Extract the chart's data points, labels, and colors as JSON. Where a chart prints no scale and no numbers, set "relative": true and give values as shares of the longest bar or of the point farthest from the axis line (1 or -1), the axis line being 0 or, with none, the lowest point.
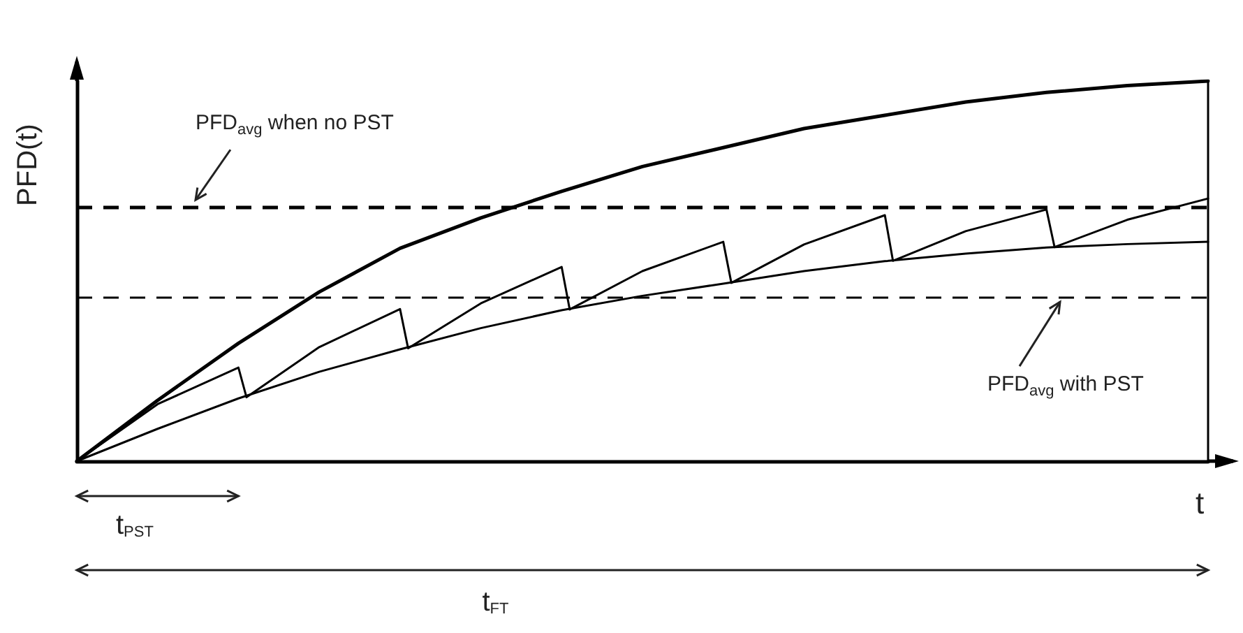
{
  "chart_data": {
    "type": "line",
    "xlabel": "t",
    "ylabel": "PFD(t)",
    "relative": true,
    "tick_labels": false,
    "marker": "none",
    "line_style": "solid",
    "categories": [
      null,
      null,
      null,
      null,
      null,
      null,
      null,
      null,
      null,
      null,
      null,
      null,
      null,
      null,
      null,
      null,
      null,
      null,
      null,
      null,
      null,
      null,
      null,
      null,
      null,
      null,
      null,
      null,
      null,
      null,
      null,
      null,
      null,
      null,
      null,
      null,
      null,
      null,
      null,
      null,
      null,
      null,
      null,
      null,
      null,
      null,
      null,
      null,
      null,
      null,
      null,
      null,
      null,
      null,
      null,
      null,
      null,
      null,
      null,
      null,
      null,
      null,
      null,
      null,
      null,
      null,
      null,
      null,
      null,
      null,
      null,
      null,
      null,
      null,
      null,
      null,
      null,
      null,
      null,
      null,
      null,
      null,
      null,
      null,
      null,
      null,
      null,
      null,
      null,
      null,
      null,
      null,
      null,
      null,
      null,
      null,
      null,
      null,
      null,
      null,
      null,
      null,
      null,
      null,
      null,
      null,
      null,
      null,
      null,
      null,
      null,
      null,
      null,
      null,
      null,
      null,
      null,
      null,
      null,
      null,
      null,
      null,
      null,
      null,
      null,
      null,
      null,
      null,
      null,
      null,
      null,
      null,
      null,
      null,
      null,
      null,
      null,
      null,
      null,
      null,
      null
    ],
    "series": [
      {
        "color": "#000000",
        "values": [
          0,
          null,
          null,
          null,
          null,
          null,
          null,
          null,
          null,
          null,
          0.16,
          null,
          null,
          null,
          null,
          null,
          null,
          null,
          null,
          null,
          0.31,
          null,
          null,
          null,
          null,
          null,
          null,
          null,
          null,
          null,
          0.445,
          null,
          null,
          null,
          null,
          null,
          null,
          null,
          null,
          null,
          0.56,
          null,
          null,
          null,
          null,
          null,
          null,
          null,
          null,
          null,
          0.64,
          null,
          null,
          null,
          null,
          null,
          null,
          null,
          null,
          null,
          0.71,
          null,
          null,
          null,
          null,
          null,
          null,
          null,
          null,
          null,
          0.775,
          null,
          null,
          null,
          null,
          null,
          null,
          null,
          null,
          null,
          0.825,
          null,
          null,
          null,
          null,
          null,
          null,
          null,
          null,
          null,
          0.875,
          null,
          null,
          null,
          null,
          null,
          null,
          null,
          null,
          null,
          0.91,
          null,
          null,
          null,
          null,
          null,
          null,
          null,
          null,
          null,
          0.945,
          null,
          null,
          null,
          null,
          null,
          null,
          null,
          null,
          null,
          0.97,
          null,
          null,
          null,
          null,
          null,
          null,
          null,
          null,
          null,
          0.988,
          null,
          null,
          null,
          null,
          null,
          null,
          null,
          null,
          null,
          1
        ]
      },
      {
        "color": "#000000",
        "values": [
          0,
          null,
          null,
          null,
          null,
          null,
          null,
          null,
          null,
          null,
          0.085,
          null,
          null,
          null,
          null,
          null,
          null,
          null,
          null,
          null,
          0.165,
          null,
          null,
          null,
          null,
          null,
          null,
          null,
          null,
          null,
          0.235,
          null,
          null,
          null,
          null,
          null,
          null,
          null,
          null,
          null,
          0.294,
          null,
          null,
          null,
          null,
          null,
          null,
          null,
          null,
          null,
          0.35,
          null,
          null,
          null,
          null,
          null,
          null,
          null,
          null,
          null,
          0.397,
          null,
          null,
          null,
          null,
          null,
          null,
          null,
          null,
          null,
          0.435,
          null,
          null,
          null,
          null,
          null,
          null,
          null,
          null,
          null,
          0.467,
          null,
          null,
          null,
          null,
          null,
          null,
          null,
          null,
          null,
          0.5,
          null,
          null,
          null,
          null,
          null,
          null,
          null,
          null,
          null,
          0.526,
          null,
          null,
          null,
          null,
          null,
          null,
          null,
          null,
          null,
          0.546,
          null,
          null,
          null,
          null,
          null,
          null,
          null,
          null,
          null,
          0.562,
          null,
          null,
          null,
          null,
          null,
          null,
          null,
          null,
          null,
          0.571,
          null,
          null,
          null,
          null,
          null,
          null,
          null,
          null,
          null,
          0.577
        ]
      },
      {
        "color": "#000000",
        "values": [
          0,
          null,
          null,
          null,
          null,
          null,
          null,
          null,
          null,
          null,
          0.15,
          null,
          null,
          null,
          null,
          null,
          null,
          null,
          null,
          null,
          0.246,
          0.168,
          null,
          null,
          null,
          null,
          null,
          null,
          null,
          null,
          0.3,
          null,
          null,
          null,
          null,
          null,
          null,
          null,
          null,
          null,
          0.4,
          0.297,
          null,
          null,
          null,
          null,
          null,
          null,
          null,
          null,
          0.415,
          null,
          null,
          null,
          null,
          null,
          null,
          null,
          null,
          null,
          0.511,
          0.399,
          null,
          null,
          null,
          null,
          null,
          null,
          null,
          null,
          0.5,
          null,
          null,
          null,
          null,
          null,
          null,
          null,
          null,
          null,
          0.577,
          0.469,
          null,
          null,
          null,
          null,
          null,
          null,
          null,
          null,
          0.57,
          null,
          null,
          null,
          null,
          null,
          null,
          null,
          null,
          null,
          0.647,
          0.527,
          null,
          null,
          null,
          null,
          null,
          null,
          null,
          null,
          0.605,
          null,
          null,
          null,
          null,
          null,
          null,
          null,
          null,
          null,
          0.662,
          0.563,
          null,
          null,
          null,
          null,
          null,
          null,
          null,
          null,
          0.635,
          null,
          null,
          null,
          null,
          null,
          null,
          null,
          null,
          null,
          0.691
        ]
      }
    ],
    "ref_lines": [
      {
        "axis": "y",
        "value": 0.665,
        "label": "PFD$_{avg}$ when no PST",
        "color": "#000000",
        "line_style": "dashed"
      },
      {
        "axis": "y",
        "value": 0.43,
        "label": "PFD$_{avg}$ with PST",
        "color": "#000000",
        "line_style": "dashed"
      }
    ],
    "annotations": [
      "t$_{PST}$",
      "t$_{FT}$"
    ]
  }
}
